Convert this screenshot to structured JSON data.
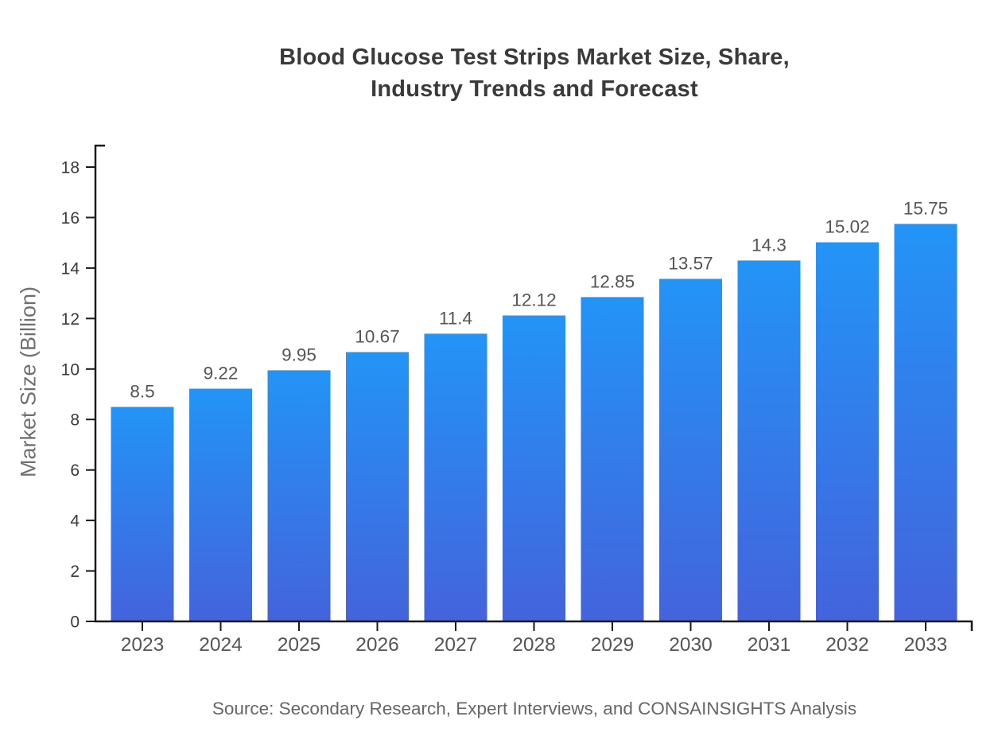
{
  "title": {
    "line1": "Blood Glucose Test Strips Market Size, Share,",
    "line2": "Industry Trends and Forecast"
  },
  "source": "Source: Secondary Research, Expert Interviews, and CONSAINSIGHTS Analysis",
  "chart_data": {
    "type": "bar",
    "title": "Blood Glucose Test Strips Market Size, Share, Industry Trends and Forecast",
    "categories": [
      "2023",
      "2024",
      "2025",
      "2026",
      "2027",
      "2028",
      "2029",
      "2030",
      "2031",
      "2032",
      "2033"
    ],
    "values": [
      8.5,
      9.22,
      9.95,
      10.67,
      11.4,
      12.12,
      12.85,
      13.57,
      14.3,
      15.02,
      15.75
    ],
    "xlabel": "",
    "ylabel": "Market Size (Billion)",
    "ylim": [
      0,
      18
    ],
    "yticks": [
      0,
      2,
      4,
      6,
      8,
      10,
      12,
      14,
      16,
      18
    ],
    "grid": false,
    "legend": false,
    "value_labels_shown": true,
    "colors": {
      "bar_gradient_top": "#2394f7",
      "bar_gradient_bottom": "#4463dc",
      "axis_line": "#1a1a1a",
      "y_tick_label": "#3a3a3a",
      "x_tick_label": "#555555",
      "value_label": "#555555",
      "title": "#3a3a3a",
      "ylabel": "#707070",
      "source": "#666666"
    }
  }
}
